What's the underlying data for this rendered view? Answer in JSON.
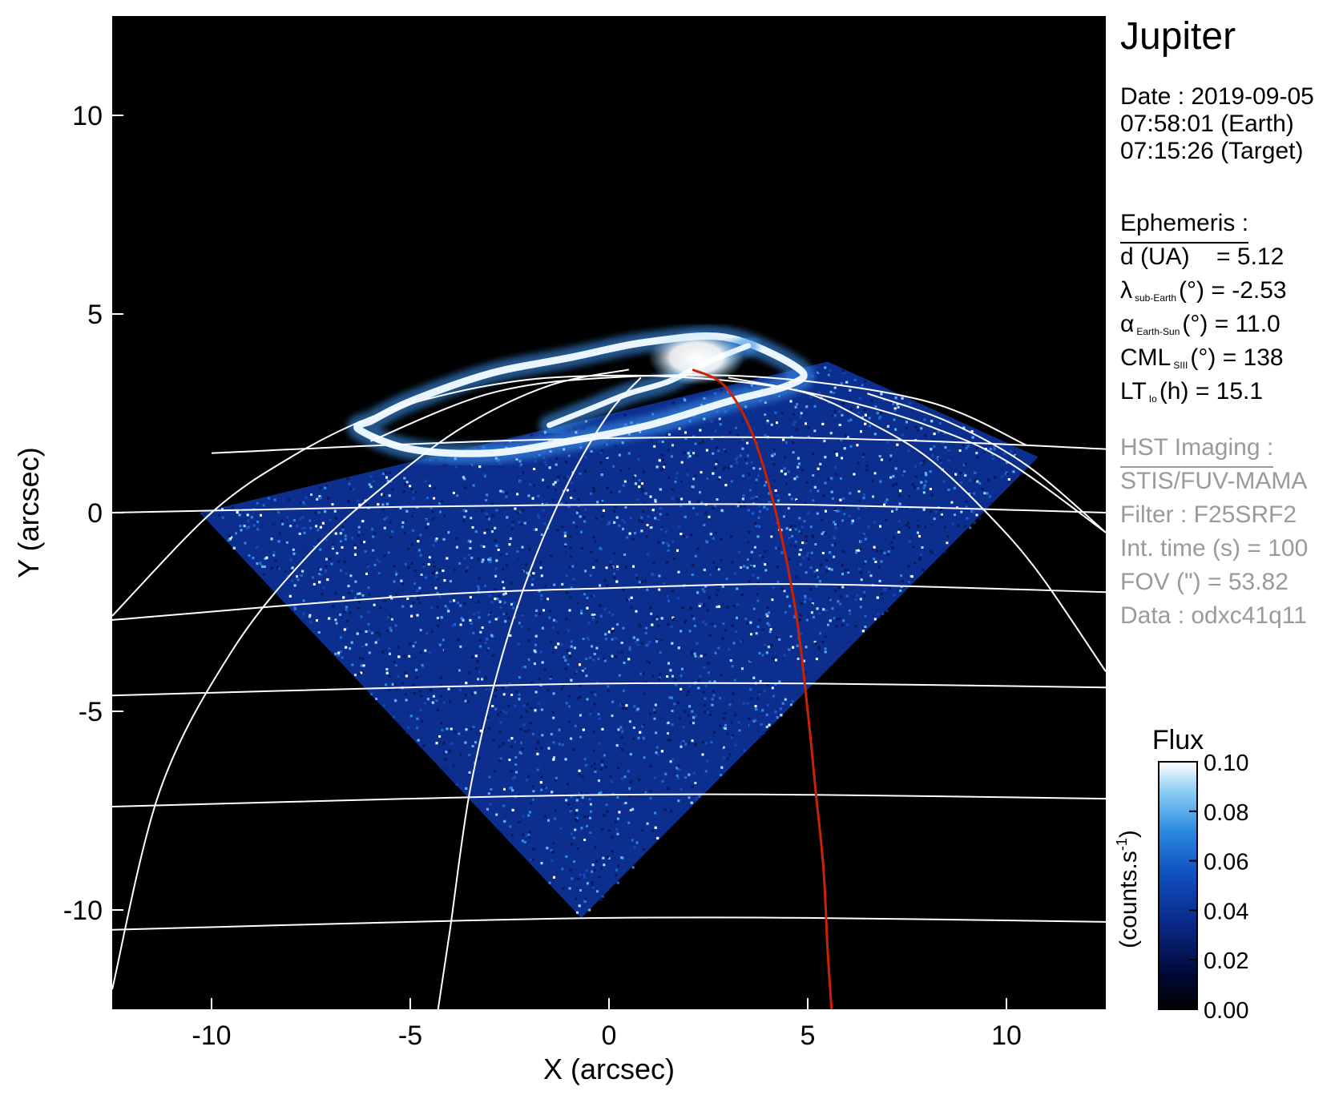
{
  "target": "Jupiter",
  "date_block": {
    "date_line": "Date : 2019-09-05",
    "earth_time": "07:58:01 (Earth)",
    "target_time": "07:15:26 (Target)"
  },
  "ephemeris": {
    "heading": "Ephemeris :",
    "distance": {
      "label": "d (UA)",
      "value": "= 5.12"
    },
    "sub_earth_lat": {
      "symbol": "λ",
      "subscript": "sub-Earth",
      "unit": "(°)",
      "value": "= -2.53"
    },
    "phase_angle": {
      "symbol": "α",
      "subscript": "Earth-Sun",
      "unit": "(°)",
      "value": "= 11.0"
    },
    "cml": {
      "symbol": "CML",
      "subscript": "SIII",
      "unit": "(°)",
      "value": "= 138"
    },
    "lt_io": {
      "symbol": "LT",
      "subscript": "Io",
      "unit": "(h)",
      "value": "= 15.1"
    }
  },
  "imaging": {
    "heading": "HST Imaging :",
    "instrument": "STIS/FUV-MAMA",
    "filter": "Filter : F25SRF2",
    "int_time": "Int. time (s) = 100",
    "fov": "FOV (\") = 53.82",
    "data_id": "Data : odxc41q11"
  },
  "chart_data": {
    "type": "heatmap",
    "xlabel": "X (arcsec)",
    "ylabel": "Y (arcsec)",
    "xlim": [
      -12.5,
      12.5
    ],
    "ylim": [
      -12.5,
      12.5
    ],
    "xticks": [
      -10,
      -5,
      0,
      5,
      10
    ],
    "yticks": [
      -10,
      -5,
      0,
      5,
      10
    ],
    "background_color": "#000000",
    "grid_color": "#ffffff",
    "footprint_color": "#cc2200",
    "colorbar": {
      "title": "Flux",
      "unit_label": "(counts.s",
      "unit_exponent": "-1",
      "unit_close": ")",
      "min": 0.0,
      "max": 0.1,
      "ticks": [
        "0.00",
        "0.02",
        "0.04",
        "0.06",
        "0.08",
        "0.10"
      ],
      "colors": [
        "#000000",
        "#000a3a",
        "#0a2a8a",
        "#1050c0",
        "#2a8ae0",
        "#8ccdf5",
        "#ffffff"
      ]
    },
    "detector_footprint": {
      "shape": "diamond",
      "vertices": [
        [
          -10.3,
          0.0
        ],
        [
          5.5,
          3.8
        ],
        [
          10.8,
          1.4
        ],
        [
          -0.7,
          -10.2
        ]
      ]
    },
    "io_footprint_curve": {
      "x": [
        2.1,
        2.9,
        3.6,
        4.2,
        4.7,
        5.0,
        5.2,
        5.4,
        5.5,
        5.6
      ],
      "y": [
        3.6,
        3.2,
        2.0,
        0.0,
        -2.5,
        -5.0,
        -7.0,
        -9.0,
        -11.0,
        -12.5
      ]
    },
    "latitude_lines": [
      {
        "x": [
          -10.0,
          -3.0,
          3.0,
          8.0,
          12.5
        ],
        "y": [
          1.5,
          1.8,
          1.9,
          1.8,
          1.6
        ]
      },
      {
        "x": [
          -12.5,
          -5.0,
          0.0,
          5.0,
          12.5
        ],
        "y": [
          -2.7,
          -2.1,
          -1.9,
          -1.8,
          -2.0
        ]
      },
      {
        "x": [
          -12.5,
          -5.0,
          0.0,
          5.0,
          12.5
        ],
        "y": [
          0.0,
          0.15,
          0.2,
          0.2,
          0.0
        ]
      },
      {
        "x": [
          -12.5,
          -5.0,
          0.0,
          5.0,
          12.5
        ],
        "y": [
          -4.6,
          -4.4,
          -4.3,
          -4.3,
          -4.4
        ]
      },
      {
        "x": [
          -12.5,
          -5.0,
          0.0,
          5.0,
          12.5
        ],
        "y": [
          -7.4,
          -7.2,
          -7.1,
          -7.1,
          -7.2
        ]
      },
      {
        "x": [
          -12.5,
          -5.0,
          0.0,
          5.0,
          12.5
        ],
        "y": [
          -10.5,
          -10.3,
          -10.2,
          -10.2,
          -10.3
        ]
      },
      {
        "x": [
          -6.0,
          -3.0,
          0.0,
          4.0,
          8.0,
          10.5
        ],
        "y": [
          1.8,
          3.0,
          3.4,
          3.4,
          2.8,
          1.7
        ]
      }
    ],
    "longitude_lines": [
      {
        "x": [
          -12.5,
          -10.0,
          -8.0,
          -6.0,
          -4.0,
          -2.0,
          0.0,
          2.0,
          4.0,
          6.0,
          8.0,
          10.0,
          12.5
        ],
        "y": [
          -2.6,
          0.0,
          1.4,
          2.4,
          3.0,
          3.35,
          3.45,
          3.4,
          3.2,
          2.8,
          2.2,
          1.3,
          -0.5
        ]
      },
      {
        "x": [
          -12.5,
          -11.3,
          -9.5,
          -7.5,
          -5.5,
          -3.6,
          -1.5,
          0.5
        ],
        "y": [
          -12.0,
          -7.0,
          -3.5,
          -1.0,
          0.8,
          2.2,
          3.2,
          3.6
        ]
      },
      {
        "x": [
          -4.3,
          -4.0,
          -3.5,
          -2.8,
          -2.0,
          -1.0,
          0.0,
          0.8
        ],
        "y": [
          -12.5,
          -10.5,
          -7.0,
          -4.0,
          -1.5,
          0.8,
          2.5,
          3.4
        ]
      },
      {
        "x": [
          3.0,
          5.0,
          6.5,
          8.0,
          9.5,
          10.8,
          12.5
        ],
        "y": [
          3.4,
          3.0,
          2.3,
          1.4,
          0.0,
          -1.5,
          -4.0
        ]
      },
      {
        "x": [
          6.5,
          8.5,
          10.5,
          12.5
        ],
        "y": [
          3.0,
          2.3,
          1.2,
          -0.5
        ]
      }
    ],
    "auroral_oval": [
      {
        "x": [
          -6.0,
          -5.0,
          -3.0,
          -1.0,
          1.0,
          3.0,
          4.8,
          4.5,
          3.0,
          1.0,
          -1.0,
          -3.0,
          -5.0,
          -6.3,
          -6.0
        ],
        "y": [
          2.3,
          2.8,
          3.5,
          3.9,
          4.3,
          4.4,
          3.6,
          3.2,
          2.8,
          2.2,
          1.8,
          1.5,
          1.6,
          2.1,
          2.3
        ]
      },
      {
        "x": [
          -1.5,
          -0.5,
          0.5,
          1.5,
          2.5,
          3.5
        ],
        "y": [
          2.2,
          2.6,
          3.0,
          3.3,
          3.8,
          4.2
        ]
      }
    ],
    "bright_spot": {
      "x": 2.2,
      "y": 3.9
    }
  }
}
